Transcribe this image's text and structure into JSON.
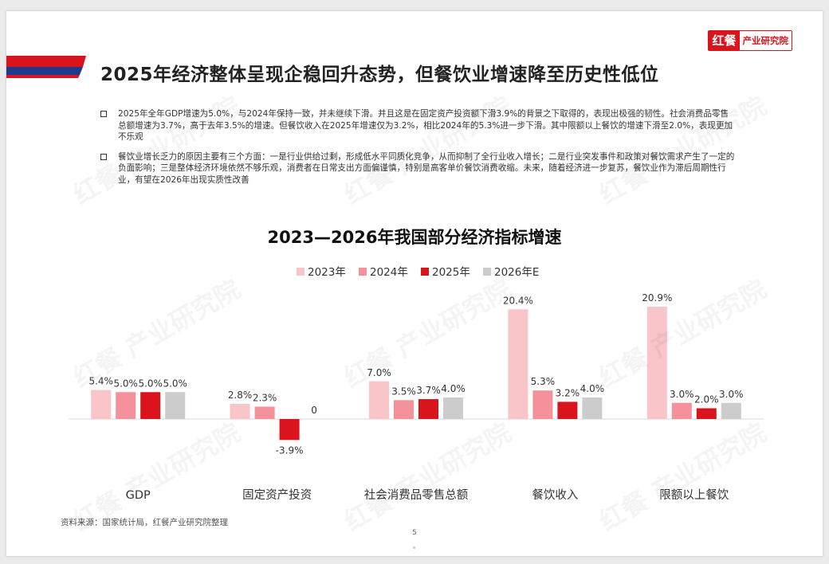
{
  "brand": {
    "mark": "红餐",
    "name": "产业研究院"
  },
  "page_title": "2025年经济整体呈现企稳回升态势，但餐饮业增速降至历史性低位",
  "bullets": [
    "2025年全年GDP增速为5.0%，与2024年保持一致，并未继续下滑。并且这是在固定资产投资额下滑3.9%的背景之下取得的，表现出极强的韧性。社会消费品零售总额增速为3.7%，高于去年3.5%的增速。但餐饮收入在2025年增速仅为3.2%，相比2024年的5.3%进一步下滑。其中限额以上餐饮的增速下滑至2.0%，表现更加不乐观",
    "餐饮业增长乏力的原因主要有三个方面：一是行业供给过剩，形成低水平同质化竞争，从而抑制了全行业收入增长；二是行业突发事件和政策对餐饮需求产生了一定的负面影响；三是整体经济环境依然不够乐观，消费者在日常支出方面偏谨慎，特别是高客单价餐饮消费收缩。未来，随着经济进一步复苏，餐饮业作为滞后周期性行业，有望在2026年出现实质性改善"
  ],
  "chart_data": {
    "type": "bar",
    "title": "2023—2026年我国部分经济指标增速",
    "legend_position": "top-center",
    "categories": [
      "GDP",
      "固定资产投资",
      "社会消费品零售总额",
      "餐饮收入",
      "限额以上餐饮"
    ],
    "series": [
      {
        "name": "2023年",
        "color": "#f9c5c9",
        "values": [
          5.4,
          2.8,
          7.0,
          20.4,
          20.9
        ],
        "labels": [
          "5.4%",
          "2.8%",
          "7.0%",
          "20.4%",
          "20.9%"
        ]
      },
      {
        "name": "2024年",
        "color": "#f4919a",
        "values": [
          5.0,
          2.3,
          3.5,
          5.3,
          3.0
        ],
        "labels": [
          "5.0%",
          "2.3%",
          "3.5%",
          "5.3%",
          "3.0%"
        ]
      },
      {
        "name": "2025年",
        "color": "#d9141c",
        "values": [
          5.0,
          -3.9,
          3.7,
          3.2,
          2.0
        ],
        "labels": [
          "5.0%",
          "-3.9%",
          "3.7%",
          "3.2%",
          "2.0%"
        ]
      },
      {
        "name": "2026年E",
        "color": "#cccccc",
        "values": [
          5.0,
          0,
          4.0,
          4.0,
          3.0
        ],
        "labels": [
          "5.0%",
          "0",
          "4.0%",
          "4.0%",
          "3.0%"
        ]
      }
    ],
    "ylim": [
      -4,
      21
    ],
    "grid": false
  },
  "source": "资料来源：国家统计局，红餐产业研究院整理",
  "page_number": "5",
  "colors": {
    "brand_red": "#d9141c",
    "flag_blue": "#1f3a8a"
  },
  "watermark": "红餐 产业研究院"
}
